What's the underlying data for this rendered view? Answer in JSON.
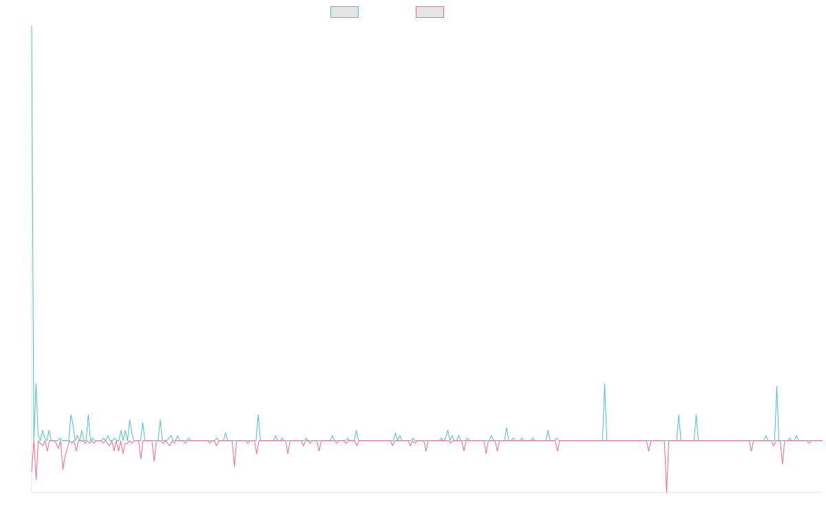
{
  "chart_data": {
    "type": "line",
    "title": "",
    "xlabel": "",
    "ylabel": "",
    "legend_position": "top-center",
    "grid": false,
    "colors": {
      "series_a": "#4bc0c0",
      "series_b": "#ff6384",
      "legend_fill": "#e5e5e5",
      "axis": "#e6e6e6"
    },
    "ylim": [
      -100,
      800
    ],
    "series": [
      {
        "key": "series_a",
        "values": [
          800,
          0,
          110,
          10,
          0,
          20,
          5,
          0,
          20,
          0,
          0,
          0,
          0,
          5,
          0,
          0,
          0,
          0,
          50,
          30,
          0,
          10,
          0,
          20,
          0,
          0,
          50,
          0,
          5,
          0,
          0,
          0,
          0,
          5,
          0,
          10,
          0,
          0,
          5,
          0,
          0,
          20,
          0,
          20,
          0,
          40,
          15,
          0,
          0,
          0,
          0,
          35,
          0,
          0,
          0,
          0,
          0,
          0,
          0,
          40,
          0,
          0,
          0,
          5,
          10,
          0,
          0,
          10,
          0,
          0,
          0,
          0,
          5,
          0,
          0,
          0,
          0,
          0,
          0,
          0,
          0,
          0,
          0,
          0,
          0,
          5,
          0,
          0,
          0,
          15,
          0,
          0,
          0,
          0,
          0,
          0,
          0,
          0,
          0,
          0,
          0,
          0,
          0,
          0,
          50,
          0,
          0,
          0,
          0,
          0,
          0,
          0,
          10,
          0,
          0,
          5,
          0,
          0,
          0,
          0,
          0,
          0,
          0,
          0,
          0,
          0,
          5,
          0,
          0,
          0,
          0,
          0,
          0,
          0,
          0,
          0,
          0,
          0,
          10,
          0,
          0,
          0,
          0,
          0,
          0,
          5,
          0,
          0,
          0,
          20,
          0,
          0,
          0,
          0,
          0,
          0,
          0,
          0,
          0,
          0,
          0,
          0,
          0,
          0,
          0,
          0,
          0,
          15,
          0,
          10,
          0,
          0,
          0,
          0,
          0,
          5,
          0,
          0,
          0,
          0,
          0,
          0,
          0,
          0,
          0,
          0,
          0,
          0,
          5,
          0,
          5,
          20,
          0,
          10,
          0,
          0,
          10,
          0,
          0,
          0,
          5,
          0,
          0,
          0,
          0,
          0,
          0,
          0,
          0,
          0,
          0,
          10,
          0,
          0,
          0,
          0,
          0,
          0,
          25,
          0,
          0,
          5,
          0,
          0,
          0,
          5,
          0,
          0,
          0,
          0,
          5,
          0,
          0,
          0,
          0,
          0,
          0,
          20,
          0,
          0,
          0,
          5,
          0,
          0,
          0,
          0,
          0,
          0,
          0,
          0,
          0,
          0,
          0,
          0,
          0,
          0,
          0,
          0,
          0,
          0,
          0,
          0,
          0,
          110,
          0,
          0,
          0,
          0,
          0,
          0,
          0,
          0,
          0,
          0,
          0,
          0,
          0,
          0,
          0,
          0,
          0,
          0,
          0,
          0,
          0,
          0,
          0,
          0,
          0,
          0,
          0,
          0,
          0,
          0,
          0,
          0,
          0,
          50,
          0,
          0,
          0,
          0,
          0,
          0,
          0,
          50,
          0,
          0,
          0,
          0,
          0,
          0,
          0,
          0,
          0,
          0,
          0,
          0,
          0,
          0,
          0,
          0,
          0,
          0,
          0,
          0,
          0,
          0,
          0,
          0,
          0,
          0,
          0,
          0,
          0,
          0,
          0,
          10,
          0,
          0,
          0,
          0,
          105,
          0,
          0,
          0,
          0,
          0,
          5,
          0,
          0,
          10,
          0,
          0,
          0,
          0,
          0,
          0,
          0,
          0,
          0,
          0,
          0,
          0
        ]
      },
      {
        "key": "series_b",
        "values": [
          -60,
          0,
          -75,
          0,
          -5,
          -10,
          0,
          -20,
          0,
          0,
          0,
          -5,
          -15,
          0,
          -55,
          -30,
          -15,
          0,
          -5,
          0,
          -20,
          0,
          0,
          0,
          -5,
          0,
          -5,
          0,
          -5,
          0,
          0,
          0,
          -5,
          0,
          -5,
          -10,
          0,
          -20,
          0,
          -20,
          0,
          -25,
          -5,
          -5,
          0,
          -5,
          0,
          0,
          0,
          -35,
          0,
          0,
          0,
          0,
          0,
          -40,
          0,
          0,
          0,
          -5,
          0,
          -5,
          -10,
          0,
          -5,
          0,
          0,
          0,
          0,
          -5,
          0,
          0,
          0,
          0,
          0,
          0,
          0,
          0,
          0,
          0,
          -5,
          0,
          0,
          -10,
          0,
          0,
          0,
          0,
          0,
          0,
          0,
          -50,
          0,
          0,
          0,
          0,
          0,
          -5,
          0,
          0,
          0,
          -25,
          0,
          0,
          0,
          0,
          0,
          0,
          0,
          0,
          0,
          0,
          0,
          0,
          0,
          -25,
          0,
          0,
          0,
          0,
          0,
          0,
          -10,
          0,
          0,
          -5,
          0,
          0,
          0,
          -20,
          0,
          0,
          0,
          0,
          0,
          0,
          0,
          -5,
          0,
          0,
          0,
          -5,
          0,
          0,
          0,
          0,
          -10,
          0,
          0,
          0,
          0,
          0,
          0,
          0,
          0,
          0,
          0,
          0,
          0,
          0,
          0,
          0,
          -10,
          0,
          0,
          0,
          0,
          0,
          0,
          0,
          -10,
          0,
          -5,
          0,
          0,
          0,
          0,
          -20,
          0,
          0,
          0,
          0,
          0,
          0,
          0,
          0,
          0,
          0,
          -5,
          0,
          0,
          0,
          0,
          0,
          -20,
          0,
          0,
          0,
          0,
          0,
          0,
          0,
          0,
          0,
          -25,
          0,
          0,
          0,
          0,
          -20,
          0,
          0,
          0,
          0,
          0,
          0,
          0,
          0,
          0,
          0,
          0,
          0,
          0,
          0,
          0,
          0,
          0,
          0,
          0,
          0,
          0,
          0,
          0,
          0,
          0,
          0,
          -20,
          0,
          0,
          0,
          0,
          0,
          0,
          0,
          0,
          0,
          0,
          0,
          0,
          0,
          0,
          0,
          0,
          0,
          0,
          0,
          0,
          0,
          0,
          0,
          0,
          0,
          0,
          0,
          0,
          0,
          0,
          0,
          0,
          0,
          0,
          0,
          0,
          0,
          0,
          0,
          0,
          -20,
          0,
          0,
          0,
          0,
          0,
          0,
          0,
          -100,
          0,
          0,
          0,
          0,
          0,
          0,
          0,
          0,
          0,
          0,
          0,
          0,
          0,
          0,
          0,
          0,
          0,
          0,
          0,
          0,
          0,
          0,
          0,
          0,
          0,
          0,
          0,
          0,
          0,
          0,
          0,
          0,
          0,
          0,
          0,
          0,
          0,
          -20,
          0,
          0,
          0,
          0,
          0,
          0,
          0,
          0,
          0,
          -10,
          0,
          0,
          0,
          -45,
          0,
          0,
          0,
          0,
          0,
          0,
          0,
          0,
          0,
          0,
          0,
          -5,
          0,
          0,
          0,
          0,
          0,
          0
        ]
      }
    ]
  }
}
